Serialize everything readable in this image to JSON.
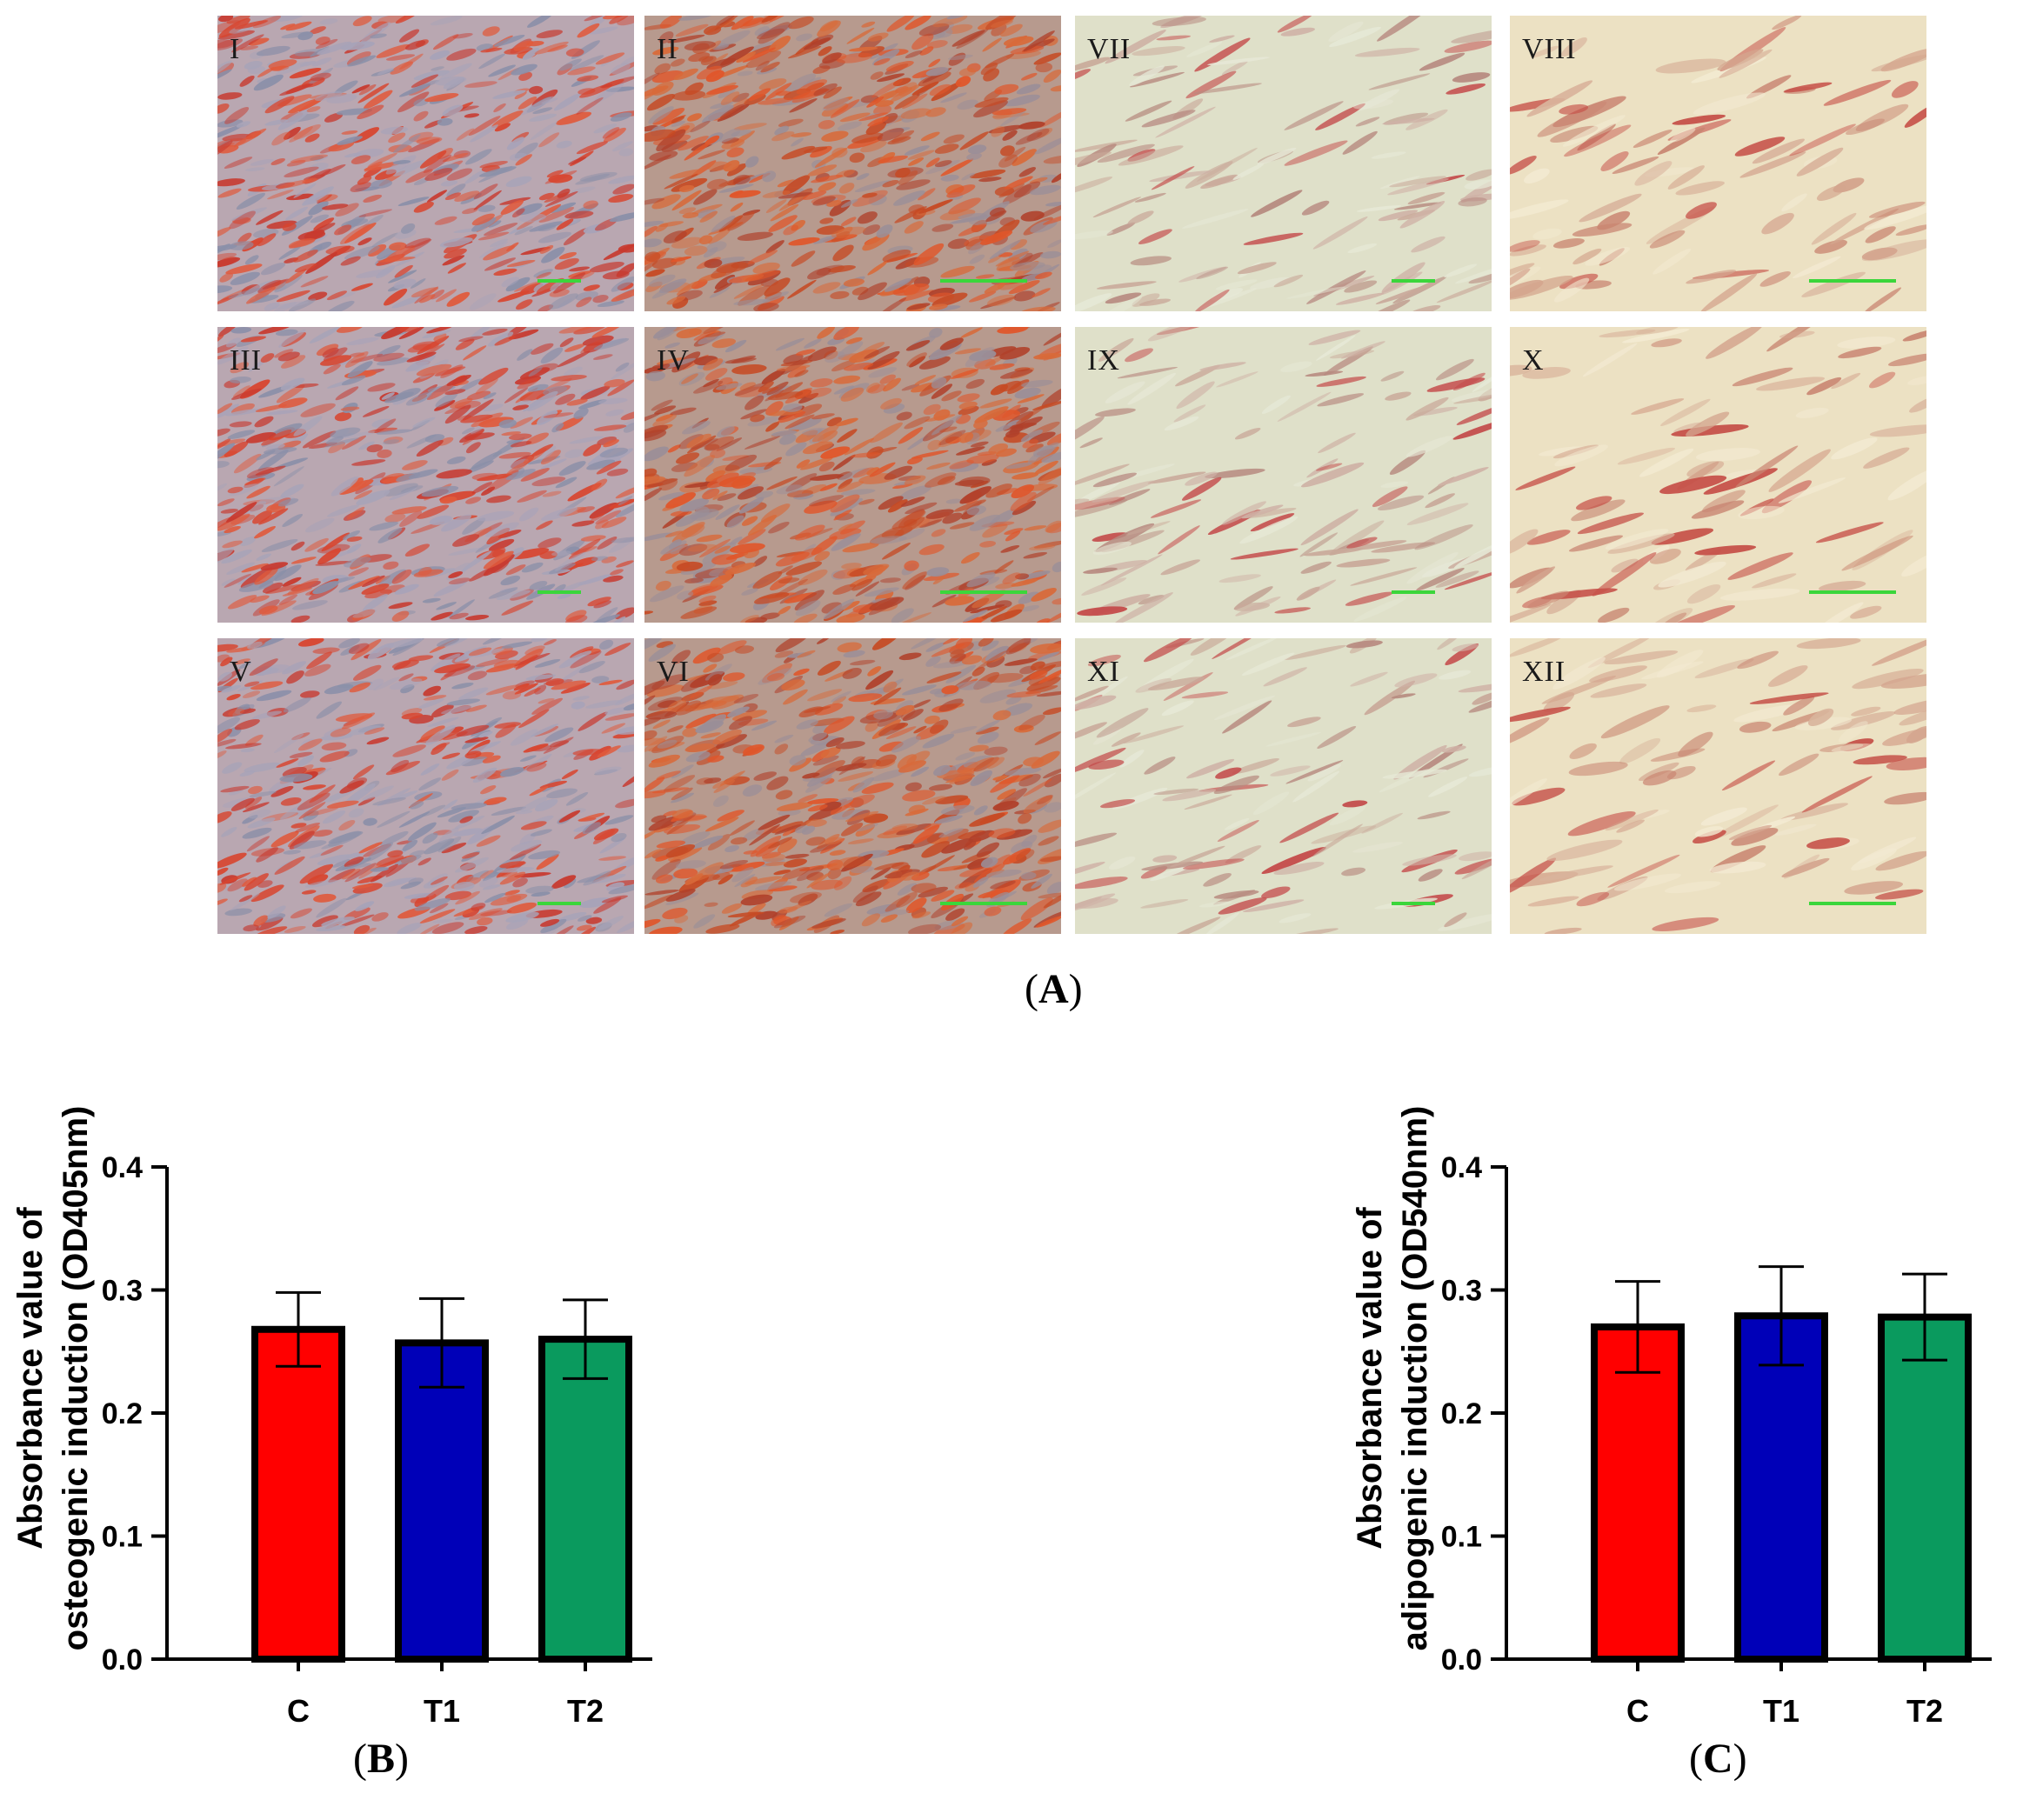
{
  "panels": [
    {
      "label": "I",
      "style": "osteo-low"
    },
    {
      "label": "II",
      "style": "osteo-high"
    },
    {
      "label": "VII",
      "style": "adipo-low"
    },
    {
      "label": "VIII",
      "style": "adipo-high"
    },
    {
      "label": "III",
      "style": "osteo-low"
    },
    {
      "label": "IV",
      "style": "osteo-high"
    },
    {
      "label": "IX",
      "style": "adipo-low"
    },
    {
      "label": "X",
      "style": "adipo-high"
    },
    {
      "label": "V",
      "style": "osteo-low"
    },
    {
      "label": "VI",
      "style": "osteo-high"
    },
    {
      "label": "XI",
      "style": "adipo-low"
    },
    {
      "label": "XII",
      "style": "adipo-high"
    }
  ],
  "figure_labels": {
    "A": "A",
    "B": "B",
    "C": "C"
  },
  "colors": {
    "C": "#ff0000",
    "T1": "#0000b8",
    "T2": "#0a9a5e",
    "scalebar": "#3bd63b"
  },
  "chart_data": [
    {
      "type": "bar",
      "categories": [
        "C",
        "T1",
        "T2"
      ],
      "values": [
        0.268,
        0.257,
        0.26
      ],
      "errors": [
        0.03,
        0.036,
        0.032
      ],
      "ylabel_lines": [
        "Absorbance value of",
        "osteogenic induction (OD405nm)"
      ],
      "ylim": [
        0,
        0.4
      ],
      "yticks": [
        "0.0",
        "0.1",
        "0.2",
        "0.3",
        "0.4"
      ],
      "grid": false
    },
    {
      "type": "bar",
      "categories": [
        "C",
        "T1",
        "T2"
      ],
      "values": [
        0.27,
        0.279,
        0.278
      ],
      "errors": [
        0.037,
        0.04,
        0.035
      ],
      "ylabel_lines": [
        "Absorbance value of",
        "adipogenic induction (OD540nm)"
      ],
      "ylim": [
        0,
        0.4
      ],
      "yticks": [
        "0.0",
        "0.1",
        "0.2",
        "0.3",
        "0.4"
      ],
      "grid": false
    }
  ]
}
